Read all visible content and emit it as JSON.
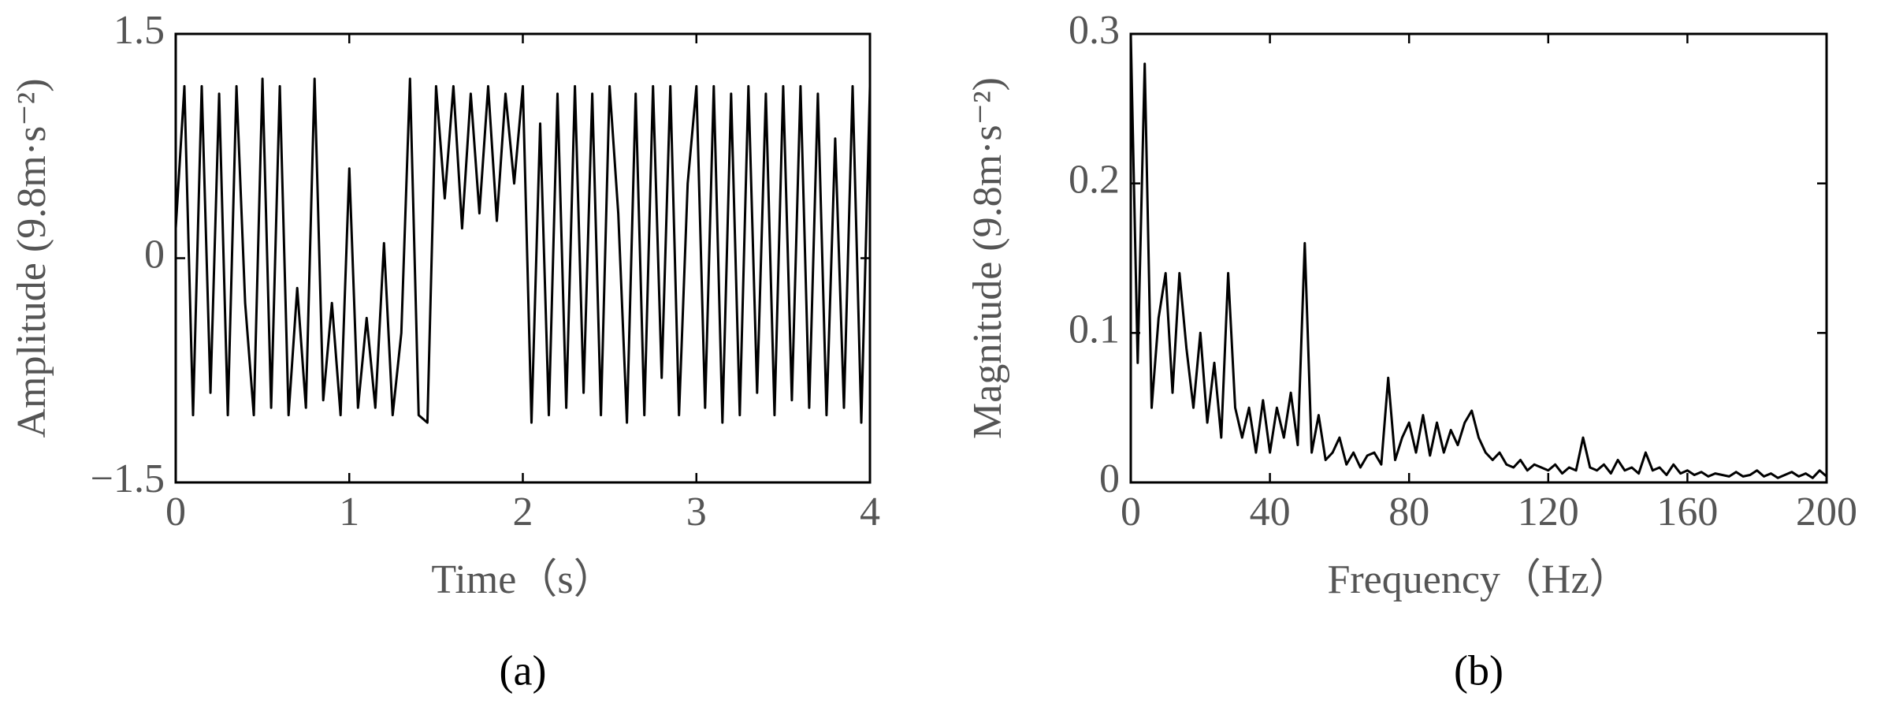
{
  "chart_data": [
    {
      "type": "line",
      "caption": "(a)",
      "xlabel": "Time（s）",
      "ylabel": "Amplitude (9.8m·s⁻²)",
      "color": "#000000",
      "xlim": [
        0,
        4
      ],
      "ylim": [
        -1.5,
        1.5
      ],
      "xticks": [
        0,
        1,
        2,
        3,
        4
      ],
      "yticks": [
        {
          "value": -1.5,
          "label": "−1.5"
        },
        0,
        1.5
      ],
      "x": [
        0,
        0.05,
        0.1,
        0.15,
        0.2,
        0.25,
        0.3,
        0.35,
        0.4,
        0.45,
        0.5,
        0.55,
        0.6,
        0.65,
        0.7,
        0.75,
        0.8,
        0.85,
        0.9,
        0.95,
        1,
        1.05,
        1.1,
        1.15,
        1.2,
        1.25,
        1.3,
        1.35,
        1.4,
        1.45,
        1.5,
        1.55,
        1.6,
        1.65,
        1.7,
        1.75,
        1.8,
        1.85,
        1.9,
        1.95,
        2,
        2.05,
        2.1,
        2.15,
        2.2,
        2.25,
        2.3,
        2.35,
        2.4,
        2.45,
        2.5,
        2.55,
        2.6,
        2.65,
        2.7,
        2.75,
        2.8,
        2.85,
        2.9,
        2.95,
        3,
        3.05,
        3.1,
        3.15,
        3.2,
        3.25,
        3.3,
        3.35,
        3.4,
        3.45,
        3.5,
        3.55,
        3.6,
        3.65,
        3.7,
        3.75,
        3.8,
        3.85,
        3.9,
        3.95,
        4
      ],
      "values": [
        0.2,
        1.15,
        -1.05,
        1.15,
        -0.9,
        1.1,
        -1.05,
        1.15,
        -0.3,
        -1.05,
        1.2,
        -1.0,
        1.15,
        -1.05,
        -0.2,
        -1.0,
        1.2,
        -0.95,
        -0.3,
        -1.05,
        0.6,
        -1.0,
        -0.4,
        -1.0,
        0.1,
        -1.05,
        -0.5,
        1.2,
        -1.05,
        -1.1,
        1.15,
        0.4,
        1.15,
        0.2,
        1.1,
        0.3,
        1.15,
        0.25,
        1.1,
        0.5,
        1.15,
        -1.1,
        0.9,
        -1.05,
        1.1,
        -1.0,
        1.15,
        -0.9,
        1.1,
        -1.05,
        1.15,
        0.3,
        -1.1,
        1.1,
        -1.05,
        1.15,
        -0.8,
        1.15,
        -1.05,
        0.5,
        1.15,
        -1.0,
        1.15,
        -1.1,
        1.1,
        -1.05,
        1.15,
        -0.9,
        1.1,
        -1.05,
        1.15,
        -0.95,
        1.15,
        -1.0,
        1.1,
        -1.05,
        0.8,
        -1.0,
        1.15,
        -1.1,
        1.15
      ]
    },
    {
      "type": "line",
      "caption": "(b)",
      "xlabel": "Frequency（Hz）",
      "ylabel": "Magnitude (9.8m·s⁻²)",
      "color": "#000000",
      "xlim": [
        0,
        200
      ],
      "ylim": [
        0,
        0.3
      ],
      "xticks": [
        0,
        40,
        80,
        120,
        160,
        200
      ],
      "yticks": [
        0,
        0.1,
        0.2,
        0.3
      ],
      "x": [
        0,
        2,
        4,
        6,
        8,
        10,
        12,
        14,
        16,
        18,
        20,
        22,
        24,
        26,
        28,
        30,
        32,
        34,
        36,
        38,
        40,
        42,
        44,
        46,
        48,
        50,
        52,
        54,
        56,
        58,
        60,
        62,
        64,
        66,
        68,
        70,
        72,
        74,
        76,
        78,
        80,
        82,
        84,
        86,
        88,
        90,
        92,
        94,
        96,
        98,
        100,
        102,
        104,
        106,
        108,
        110,
        112,
        114,
        116,
        118,
        120,
        122,
        124,
        126,
        128,
        130,
        132,
        134,
        136,
        138,
        140,
        142,
        144,
        146,
        148,
        150,
        152,
        154,
        156,
        158,
        160,
        162,
        164,
        166,
        168,
        170,
        172,
        174,
        176,
        178,
        180,
        182,
        184,
        186,
        188,
        190,
        192,
        194,
        196,
        198,
        200
      ],
      "values": [
        0.3,
        0.08,
        0.28,
        0.05,
        0.11,
        0.14,
        0.06,
        0.14,
        0.09,
        0.05,
        0.1,
        0.04,
        0.08,
        0.03,
        0.14,
        0.05,
        0.03,
        0.05,
        0.02,
        0.055,
        0.02,
        0.05,
        0.03,
        0.06,
        0.025,
        0.16,
        0.02,
        0.045,
        0.015,
        0.02,
        0.03,
        0.012,
        0.02,
        0.01,
        0.018,
        0.02,
        0.012,
        0.07,
        0.015,
        0.03,
        0.04,
        0.02,
        0.045,
        0.018,
        0.04,
        0.02,
        0.035,
        0.025,
        0.04,
        0.048,
        0.03,
        0.02,
        0.015,
        0.02,
        0.012,
        0.01,
        0.015,
        0.008,
        0.012,
        0.01,
        0.008,
        0.012,
        0.006,
        0.01,
        0.008,
        0.03,
        0.01,
        0.008,
        0.012,
        0.006,
        0.015,
        0.008,
        0.01,
        0.006,
        0.02,
        0.008,
        0.01,
        0.005,
        0.012,
        0.006,
        0.008,
        0.005,
        0.007,
        0.004,
        0.006,
        0.005,
        0.004,
        0.007,
        0.004,
        0.005,
        0.008,
        0.004,
        0.006,
        0.003,
        0.005,
        0.007,
        0.004,
        0.006,
        0.003,
        0.008,
        0.004
      ]
    }
  ]
}
